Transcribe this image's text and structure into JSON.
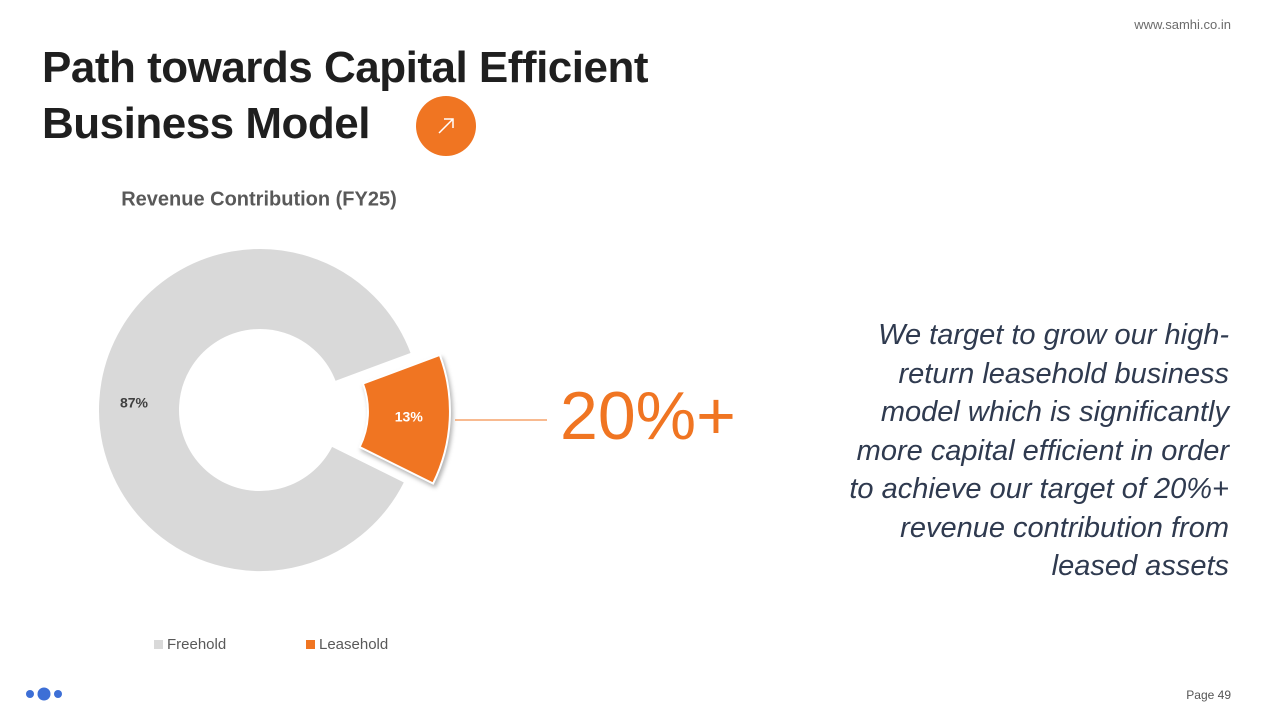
{
  "header": {
    "website": "www.samhi.co.in",
    "title": [
      "Path towards Capital Efficient",
      "Business Model"
    ]
  },
  "chart_data": {
    "type": "donut",
    "title": "Revenue Contribution (FY25)",
    "categories": [
      "Freehold",
      "Leasehold"
    ],
    "values": [
      87,
      13
    ],
    "value_labels": [
      "87%",
      "13%"
    ],
    "colors": [
      "#d9d9d9",
      "#f07522"
    ],
    "legend": "bottom"
  },
  "callout": "20%+",
  "body": [
    "We target to grow our high-",
    "return leasehold business",
    "model which is significantly",
    "more capital efficient in order",
    "to achieve our target of 20%+",
    "revenue contribution from",
    "leased assets"
  ],
  "footer": {
    "page": "Page 49"
  }
}
